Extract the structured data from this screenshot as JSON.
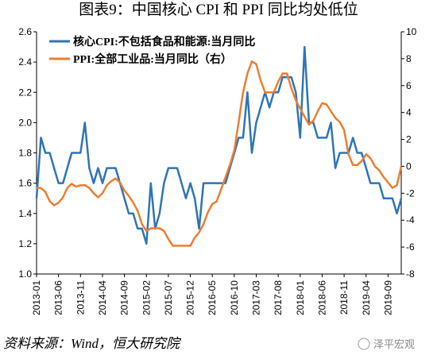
{
  "chart_data": {
    "type": "line",
    "title": "图表9：中国核心 CPI 和 PPI 同比均处低位",
    "source": "资料来源：Wind，恒大研究院",
    "watermark": "泽平宏观",
    "categories": [
      "2013-01",
      null,
      null,
      null,
      null,
      "2013-06",
      null,
      null,
      null,
      null,
      "2013-11",
      null,
      null,
      null,
      null,
      "2014-04",
      null,
      null,
      null,
      null,
      "2014-09",
      null,
      null,
      null,
      null,
      "2015-02",
      null,
      null,
      null,
      null,
      "2015-07",
      null,
      null,
      null,
      null,
      "2015-12",
      null,
      null,
      null,
      null,
      "2016-05",
      null,
      null,
      null,
      null,
      "2016-10",
      null,
      null,
      null,
      null,
      "2017-03",
      null,
      null,
      null,
      null,
      "2017-08",
      null,
      null,
      null,
      null,
      "2018-01",
      null,
      null,
      null,
      null,
      "2018-06",
      null,
      null,
      null,
      null,
      "2018-11",
      null,
      null,
      null,
      null,
      "2019-04",
      null,
      null,
      null,
      null,
      "2019-09",
      null,
      null,
      null
    ],
    "series": [
      {
        "name": "核心CPI:不包括食品和能源:当月同比",
        "color": "#2e75b6",
        "axis": "y",
        "values": [
          1.5,
          1.9,
          1.8,
          1.8,
          1.7,
          1.6,
          1.6,
          1.7,
          1.8,
          1.8,
          1.8,
          2.0,
          1.7,
          1.6,
          1.7,
          1.6,
          1.7,
          1.7,
          1.7,
          1.6,
          1.5,
          1.4,
          1.4,
          1.3,
          1.3,
          1.2,
          1.6,
          1.3,
          1.4,
          1.6,
          1.7,
          1.7,
          1.7,
          1.6,
          1.5,
          1.6,
          1.5,
          1.3,
          1.6,
          1.6,
          1.6,
          1.6,
          1.6,
          1.6,
          1.7,
          1.8,
          1.9,
          1.9,
          2.2,
          1.8,
          2.0,
          2.1,
          2.2,
          2.1,
          2.2,
          2.2,
          2.3,
          2.3,
          2.3,
          2.2,
          1.9,
          2.5,
          2.0,
          2.0,
          1.9,
          1.9,
          1.9,
          2.0,
          1.7,
          1.8,
          1.8,
          1.8,
          1.9,
          1.8,
          1.8,
          1.7,
          1.6,
          1.6,
          1.6,
          1.5,
          1.5,
          1.5,
          1.4,
          1.5
        ]
      },
      {
        "name": "PPI:全部工业品:当月同比（右）",
        "color": "#ed7d31",
        "axis": "y2",
        "values": [
          -1.6,
          -1.6,
          -1.9,
          -2.6,
          -2.9,
          -2.7,
          -2.3,
          -1.6,
          -1.3,
          -1.5,
          -1.4,
          -1.4,
          -1.6,
          -2.0,
          -2.3,
          -2.0,
          -1.4,
          -1.1,
          -0.9,
          -1.2,
          -1.8,
          -2.2,
          -2.7,
          -3.3,
          -4.3,
          -4.8,
          -4.6,
          -4.6,
          -4.6,
          -4.8,
          -5.4,
          -5.9,
          -5.9,
          -5.9,
          -5.9,
          -5.9,
          -5.3,
          -4.9,
          -4.3,
          -3.4,
          -2.8,
          -2.6,
          -1.7,
          -0.8,
          0.1,
          1.2,
          3.3,
          5.5,
          6.9,
          7.8,
          7.6,
          6.4,
          5.5,
          5.5,
          5.5,
          6.3,
          6.9,
          6.9,
          5.8,
          4.9,
          4.3,
          3.7,
          3.1,
          3.4,
          4.1,
          4.7,
          4.6,
          4.1,
          3.6,
          3.3,
          2.7,
          0.9,
          0.1,
          0.1,
          0.4,
          0.9,
          0.6,
          0.0,
          -0.3,
          -0.8,
          -1.2,
          -1.6,
          -1.4,
          0.0
        ]
      }
    ],
    "ylim": [
      1.0,
      2.6
    ],
    "yticks": [
      {
        "value": 1.0,
        "label": "1.0"
      },
      1.2,
      1.4,
      1.6,
      1.8,
      {
        "value": 2.0,
        "label": "2.0"
      },
      2.2,
      2.4,
      2.6
    ],
    "y2lim": [
      -8,
      10
    ],
    "y2ticks": [
      -8,
      -6,
      -4,
      -2,
      0,
      2,
      4,
      6,
      8,
      10
    ],
    "legend": "upper left",
    "grid": false
  }
}
